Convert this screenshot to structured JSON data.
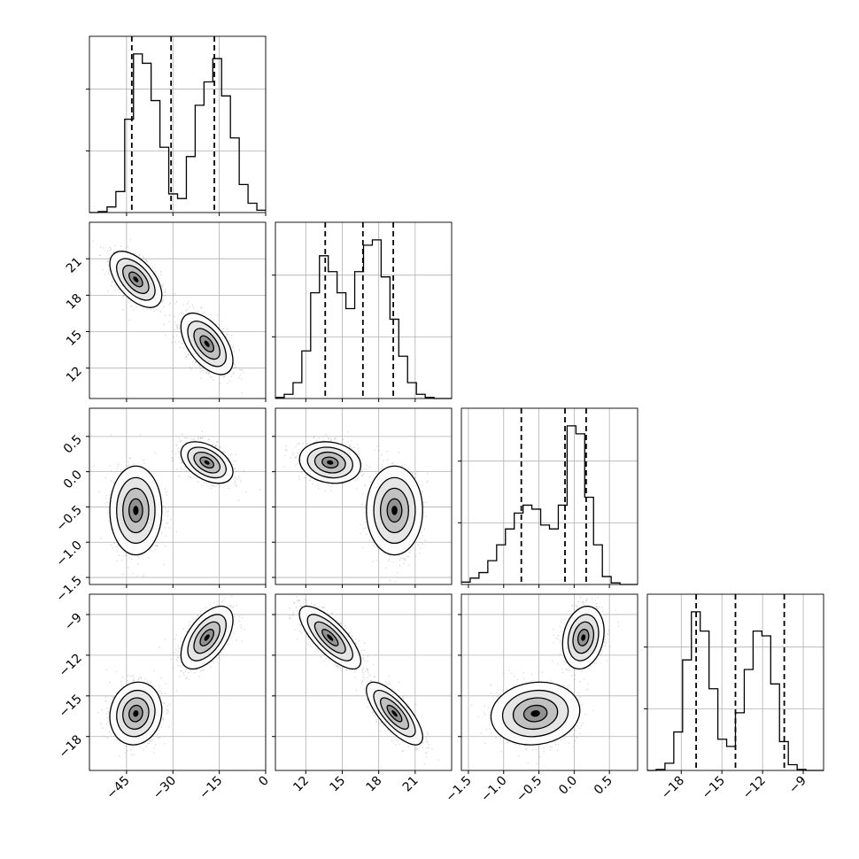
{
  "chart_data": {
    "type": "corner",
    "n_params": 4,
    "grid": true,
    "params": [
      {
        "range": [
          -57,
          0
        ],
        "ticks": [
          {
            "value": -45,
            "label": "−45"
          },
          {
            "value": -30,
            "label": "−30"
          },
          {
            "value": -15,
            "label": "−15"
          },
          {
            "value": 0,
            "label": "0"
          }
        ],
        "quantiles": [
          -43.3,
          -30.6,
          -16.6
        ],
        "hist": {
          "edges_start": -57,
          "bin_width": 2.85,
          "counts": [
            0,
            2,
            12,
            45,
            200,
            340,
            320,
            240,
            140,
            40,
            30,
            120,
            230,
            280,
            330,
            250,
            160,
            60,
            20,
            5
          ]
        }
      },
      {
        "range": [
          9.5,
          24
        ],
        "ticks": [
          {
            "value": 12,
            "label": "12"
          },
          {
            "value": 15,
            "label": "15"
          },
          {
            "value": 18,
            "label": "18"
          },
          {
            "value": 21,
            "label": "21"
          }
        ],
        "quantiles": [
          13.6,
          16.7,
          19.2
        ],
        "hist": {
          "edges_start": 9.5,
          "bin_width": 0.725,
          "counts": [
            2,
            8,
            30,
            90,
            200,
            270,
            240,
            200,
            170,
            240,
            290,
            300,
            230,
            150,
            80,
            30,
            8,
            2,
            0,
            0
          ]
        }
      },
      {
        "range": [
          -1.6,
          0.9
        ],
        "ticks": [
          {
            "value": -1.5,
            "label": "−1.5"
          },
          {
            "value": -1.0,
            "label": "−1.0"
          },
          {
            "value": -0.5,
            "label": "−0.5"
          },
          {
            "value": 0.0,
            "label": "0.0"
          },
          {
            "value": 0.5,
            "label": "0.5"
          }
        ],
        "quantiles": [
          -0.75,
          -0.13,
          0.17
        ],
        "hist": {
          "edges_start": -1.6,
          "bin_width": 0.125,
          "counts": [
            3,
            8,
            15,
            30,
            50,
            70,
            90,
            100,
            95,
            75,
            70,
            100,
            200,
            190,
            110,
            50,
            10,
            2,
            0,
            0
          ]
        }
      },
      {
        "range": [
          -20.5,
          -7.5
        ],
        "ticks": [
          {
            "value": -18,
            "label": "−18"
          },
          {
            "value": -15,
            "label": "−15"
          },
          {
            "value": -12,
            "label": "−12"
          },
          {
            "value": -9,
            "label": "−9"
          }
        ],
        "quantiles": [
          -16.9,
          -14.0,
          -10.4
        ],
        "hist": {
          "edges_start": -20.5,
          "bin_width": 0.65,
          "counts": [
            0,
            2,
            15,
            80,
            230,
            330,
            290,
            170,
            65,
            50,
            120,
            210,
            290,
            280,
            180,
            60,
            12,
            2,
            0,
            0
          ]
        }
      }
    ],
    "modes": [
      {
        "mean": [
          -42,
          19.3,
          -0.55,
          -16.3
        ],
        "sd": [
          4.0,
          1.1,
          0.3,
          1.1
        ]
      },
      {
        "mean": [
          -19,
          14.0,
          0.13,
          -10.7
        ],
        "sd": [
          4.0,
          1.2,
          0.14,
          1.1
        ]
      }
    ],
    "pairs": [
      {
        "row": 1,
        "col": 0,
        "modes": [
          {
            "rho": -0.55
          },
          {
            "rho": -0.55
          }
        ]
      },
      {
        "row": 2,
        "col": 0,
        "modes": [
          {
            "rho": 0.0
          },
          {
            "rho": -0.45
          }
        ]
      },
      {
        "row": 2,
        "col": 1,
        "modes": [
          {
            "rho": 0.0
          },
          {
            "rho": -0.15
          }
        ]
      },
      {
        "row": 3,
        "col": 0,
        "modes": [
          {
            "rho": 0.1
          },
          {
            "rho": 0.55
          }
        ]
      },
      {
        "row": 3,
        "col": 1,
        "modes": [
          {
            "rho": -0.75
          },
          {
            "rho": -0.75
          }
        ]
      },
      {
        "row": 3,
        "col": 2,
        "modes": [
          {
            "rho": 0.1
          },
          {
            "rho": 0.2
          }
        ]
      }
    ],
    "colors": {
      "contour": "#000000",
      "points": "#9a9a9a",
      "grid": "#b0b0b0",
      "density": "#000000"
    }
  }
}
